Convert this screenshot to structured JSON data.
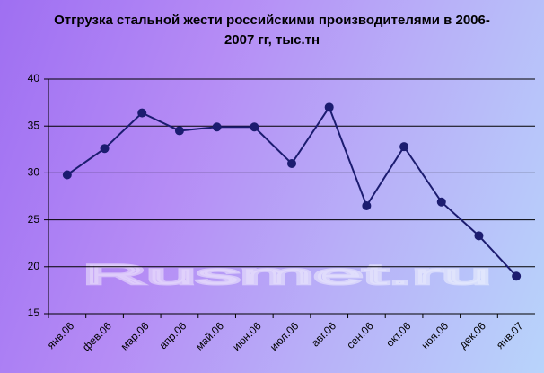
{
  "chart_data": {
    "type": "line",
    "title": "Отгрузка стальной жести российскими производителями в 2006-2007 гг, тыс.тн",
    "watermark": "Rusmet.ru",
    "categories": [
      "янв.06",
      "фев.06",
      "мар.06",
      "апр.06",
      "май.06",
      "июн.06",
      "июл.06",
      "авг.06",
      "сен.06",
      "окт.06",
      "ноя.06",
      "дек.06",
      "янв.07"
    ],
    "values": [
      29.8,
      32.6,
      36.4,
      34.5,
      34.9,
      34.9,
      31.0,
      37.0,
      26.5,
      32.8,
      26.9,
      23.3,
      19.0
    ],
    "color": "#1c1c70",
    "ylim": [
      15,
      40
    ],
    "yticks": [
      15,
      20,
      25,
      30,
      35,
      40
    ],
    "grid": true
  }
}
